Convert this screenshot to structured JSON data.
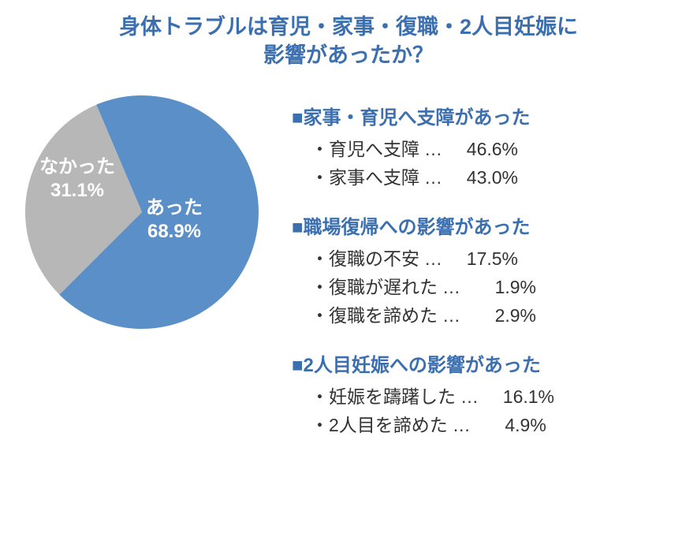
{
  "title": {
    "line1": "身体トラブルは育児・家事・復職・2人目妊娠に",
    "line2": "影響があったか？",
    "color": "#3b6fb0",
    "fontsize": 27
  },
  "pie": {
    "type": "pie",
    "size": 300,
    "background": "#ffffff",
    "slices": [
      {
        "label": "あった",
        "pct_text": "68.9%",
        "value": 68.9,
        "color": "#5b8fc7"
      },
      {
        "label": "なかった",
        "pct_text": "31.1%",
        "value": 31.1,
        "color": "#b7b7b7"
      }
    ],
    "label_fontsize": 24,
    "label_color": "#ffffff",
    "start_angle_deg": -113
  },
  "categories": {
    "header_fontsize": 24,
    "item_fontsize": 23,
    "header_color": "#3b6fb0",
    "item_color": "#333333",
    "marker": "■",
    "bullet": "・",
    "dots": "…",
    "groups": [
      {
        "header": "家事・育児へ支障があった",
        "items": [
          {
            "label": "育児へ支障",
            "value": "46.6%"
          },
          {
            "label": "家事へ支障",
            "value": "43.0%"
          }
        ]
      },
      {
        "header": "職場復帰への影響があった",
        "items": [
          {
            "label": "復職の不安",
            "value": "17.5%"
          },
          {
            "label": "復職が遅れた",
            "value": "1.9%"
          },
          {
            "label": "復職を諦めた",
            "value": "2.9%"
          }
        ]
      },
      {
        "header": "2人目妊娠への影響があった",
        "items": [
          {
            "label": "妊娠を躊躇した",
            "value": "16.1%"
          },
          {
            "label": "2人目を諦めた",
            "value": "4.9%"
          }
        ]
      }
    ]
  }
}
